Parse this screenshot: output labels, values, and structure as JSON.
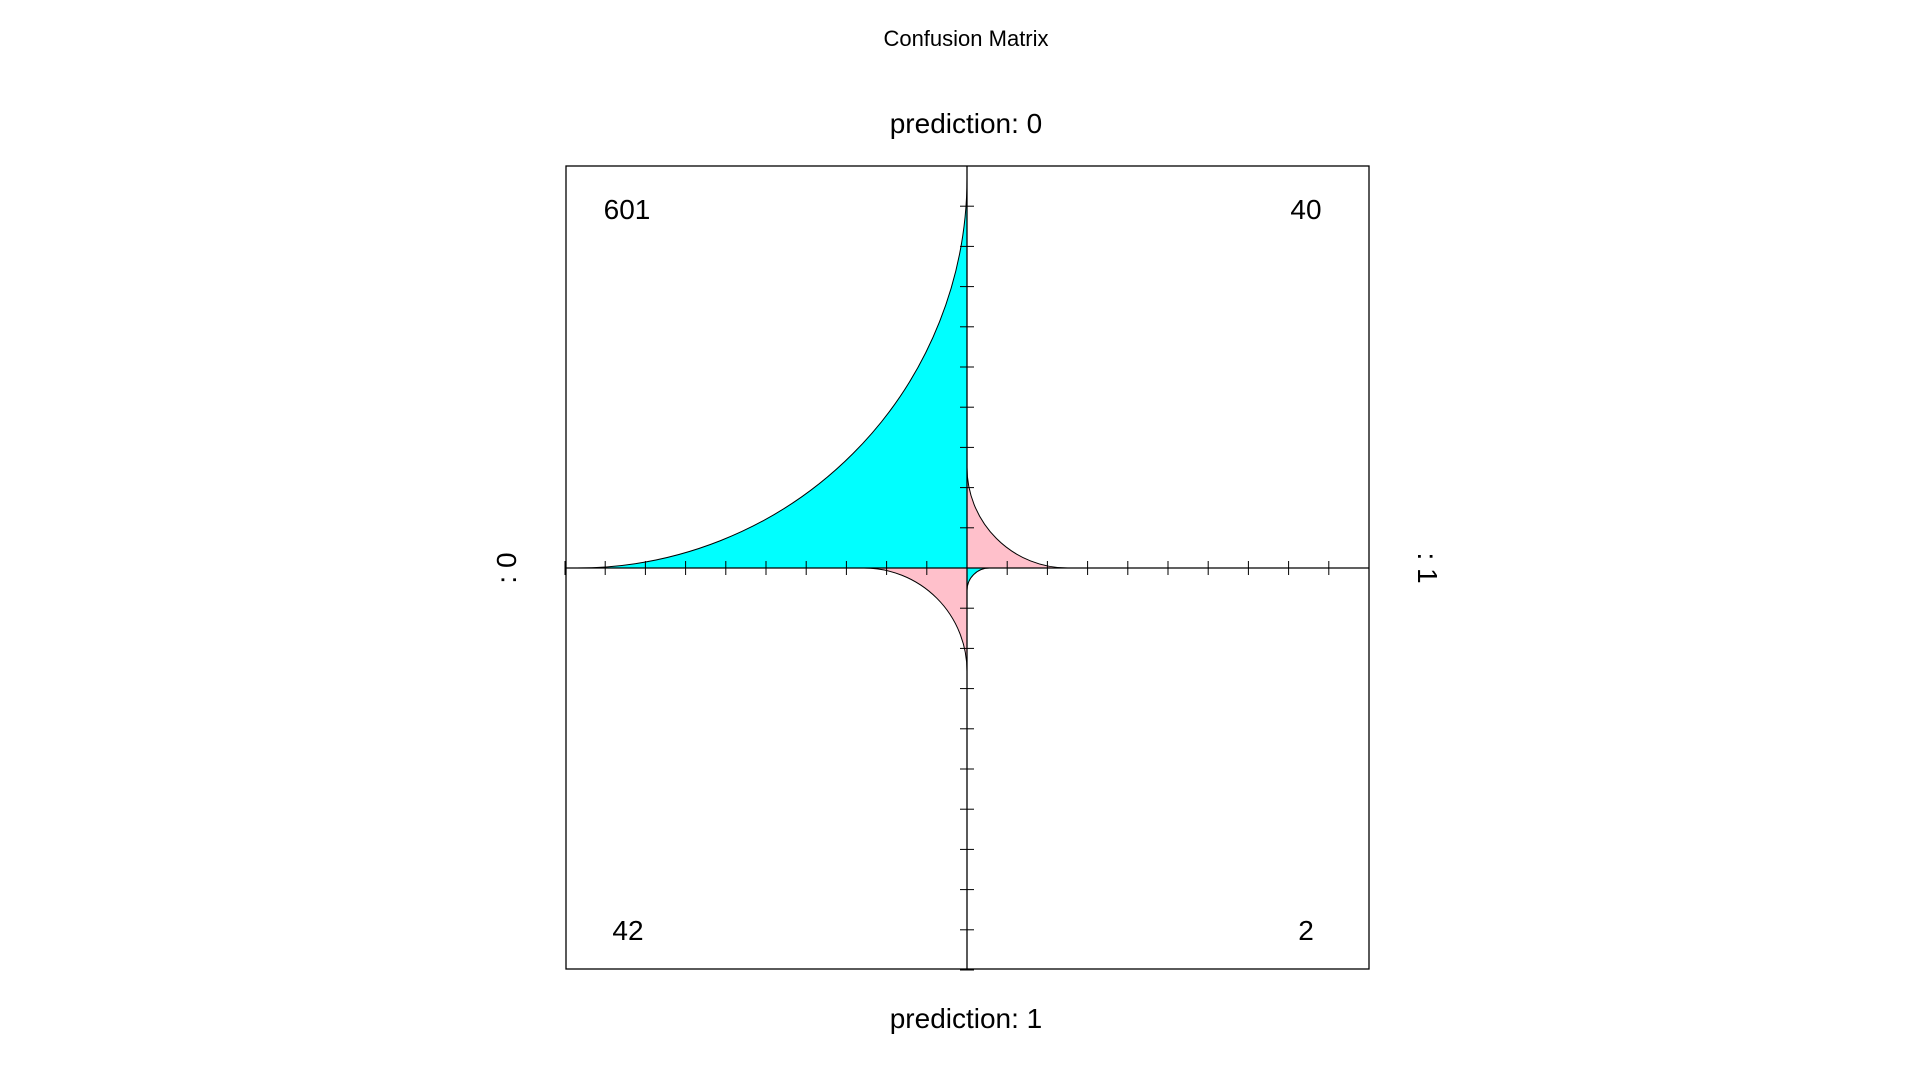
{
  "chart_data": {
    "type": "fourfold",
    "title": "Confusion Matrix",
    "top_label": "prediction: 0",
    "bottom_label": "prediction: 1",
    "left_label": ": 0",
    "right_label": ": 1",
    "cells": [
      {
        "position": "top-left",
        "value": 601,
        "color": "#00ffff"
      },
      {
        "position": "top-right",
        "value": 40,
        "color": "#ffc0cb"
      },
      {
        "position": "bottom-left",
        "value": 42,
        "color": "#ffc0cb"
      },
      {
        "position": "bottom-right",
        "value": 2,
        "color": "#00ffff"
      }
    ]
  }
}
